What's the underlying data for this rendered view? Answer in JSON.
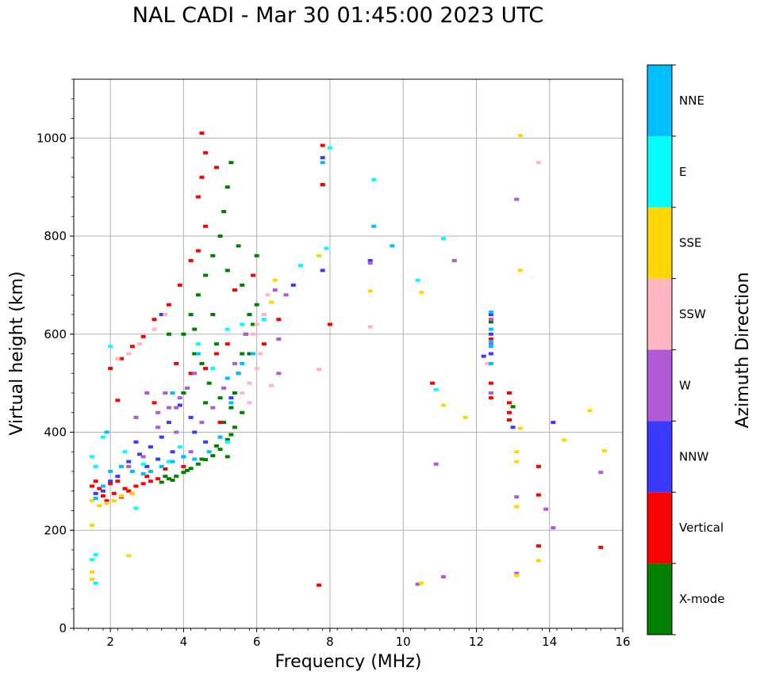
{
  "chart_data": {
    "type": "scatter",
    "title": "NAL CADI - Mar 30 01:45:00 2023 UTC",
    "xlabel": "Frequency (MHz)",
    "ylabel": "Virtual height (km)",
    "xlim": [
      1,
      16
    ],
    "ylim": [
      0,
      1120
    ],
    "xticks": [
      2,
      4,
      6,
      8,
      10,
      12,
      14,
      16
    ],
    "yticks": [
      0,
      200,
      400,
      600,
      800,
      1000
    ],
    "grid": true,
    "colorbar": {
      "label": "Azimuth Direction",
      "position": "right",
      "categories": [
        "X-mode",
        "Vertical",
        "NNW",
        "W",
        "SSW",
        "SSE",
        "E",
        "NNE"
      ],
      "colors": [
        "#008000",
        "#ff0000",
        "#3a3aff",
        "#b05ad6",
        "#ffb6c1",
        "#ffd700",
        "#00ffff",
        "#00bfff"
      ]
    },
    "series": [
      {
        "name": "X-mode",
        "points": [
          [
            3.4,
            298
          ],
          [
            3.6,
            305
          ],
          [
            3.8,
            310
          ],
          [
            4.0,
            318
          ],
          [
            4.2,
            326
          ],
          [
            4.4,
            335
          ],
          [
            4.6,
            344
          ],
          [
            4.8,
            352
          ],
          [
            5.0,
            365
          ],
          [
            5.2,
            385
          ],
          [
            5.4,
            410
          ],
          [
            5.1,
            420
          ],
          [
            5.3,
            450
          ],
          [
            5.4,
            480
          ],
          [
            5.5,
            520
          ],
          [
            5.6,
            560
          ],
          [
            5.7,
            600
          ],
          [
            5.8,
            640
          ],
          [
            6.0,
            660
          ],
          [
            4.2,
            640
          ],
          [
            4.4,
            680
          ],
          [
            4.6,
            720
          ],
          [
            4.8,
            760
          ],
          [
            5.0,
            800
          ],
          [
            5.1,
            850
          ],
          [
            5.2,
            900
          ],
          [
            5.3,
            950
          ],
          [
            4.0,
            600
          ],
          [
            4.5,
            540
          ],
          [
            4.7,
            500
          ],
          [
            5.0,
            470
          ],
          [
            3.6,
            600
          ],
          [
            4.3,
            610
          ],
          [
            5.9,
            620
          ],
          [
            5.6,
            700
          ],
          [
            6.0,
            760
          ],
          [
            5.2,
            730
          ],
          [
            4.9,
            580
          ],
          [
            3.5,
            310
          ],
          [
            4.5,
            345
          ],
          [
            4.9,
            372
          ],
          [
            5.3,
            395
          ],
          [
            4.3,
            560
          ],
          [
            4.8,
            640
          ],
          [
            5.5,
            780
          ],
          [
            7.8,
            905
          ],
          [
            12.4,
            625
          ],
          [
            13.0,
            452
          ],
          [
            3.7,
            302
          ],
          [
            4.1,
            322
          ],
          [
            5.2,
            350
          ],
          [
            5.6,
            440
          ],
          [
            5.8,
            560
          ],
          [
            4.6,
            460
          ],
          [
            4.0,
            480
          ]
        ]
      },
      {
        "name": "Vertical",
        "points": [
          [
            1.5,
            290
          ],
          [
            1.7,
            285
          ],
          [
            1.9,
            260
          ],
          [
            2.1,
            275
          ],
          [
            2.3,
            268
          ],
          [
            2.5,
            280
          ],
          [
            2.7,
            290
          ],
          [
            2.9,
            295
          ],
          [
            3.1,
            300
          ],
          [
            3.3,
            305
          ],
          [
            1.6,
            300
          ],
          [
            1.8,
            270
          ],
          [
            2.0,
            295
          ],
          [
            2.2,
            300
          ],
          [
            2.4,
            285
          ],
          [
            2.6,
            275
          ],
          [
            2.0,
            530
          ],
          [
            2.3,
            550
          ],
          [
            2.6,
            575
          ],
          [
            2.9,
            595
          ],
          [
            3.2,
            630
          ],
          [
            3.6,
            660
          ],
          [
            3.9,
            700
          ],
          [
            4.2,
            750
          ],
          [
            4.4,
            770
          ],
          [
            4.6,
            820
          ],
          [
            4.4,
            880
          ],
          [
            4.5,
            920
          ],
          [
            4.5,
            1010
          ],
          [
            4.6,
            970
          ],
          [
            4.9,
            940
          ],
          [
            4.2,
            520
          ],
          [
            4.6,
            530
          ],
          [
            4.9,
            560
          ],
          [
            5.2,
            580
          ],
          [
            3.8,
            540
          ],
          [
            3.2,
            460
          ],
          [
            2.2,
            465
          ],
          [
            5.0,
            420
          ],
          [
            5.4,
            690
          ],
          [
            5.9,
            720
          ],
          [
            6.2,
            580
          ],
          [
            6.6,
            630
          ],
          [
            7.8,
            985
          ],
          [
            7.8,
            905
          ],
          [
            8.0,
            620
          ],
          [
            7.7,
            88
          ],
          [
            10.8,
            500
          ],
          [
            12.4,
            630
          ],
          [
            12.4,
            590
          ],
          [
            12.4,
            560
          ],
          [
            12.4,
            500
          ],
          [
            12.4,
            470
          ],
          [
            12.9,
            480
          ],
          [
            12.9,
            460
          ],
          [
            12.9,
            440
          ],
          [
            12.9,
            425
          ],
          [
            13.7,
            330
          ],
          [
            13.7,
            272
          ],
          [
            13.7,
            168
          ],
          [
            15.4,
            165
          ],
          [
            3.0,
            310
          ],
          [
            3.5,
            325
          ],
          [
            4.0,
            330
          ]
        ]
      },
      {
        "name": "NNW",
        "points": [
          [
            1.6,
            275
          ],
          [
            1.8,
            280
          ],
          [
            2.0,
            300
          ],
          [
            2.2,
            310
          ],
          [
            2.5,
            340
          ],
          [
            2.8,
            355
          ],
          [
            3.1,
            370
          ],
          [
            3.4,
            390
          ],
          [
            3.7,
            360
          ],
          [
            4.0,
            350
          ],
          [
            4.3,
            400
          ],
          [
            4.6,
            380
          ],
          [
            3.0,
            330
          ],
          [
            3.3,
            345
          ],
          [
            3.6,
            420
          ],
          [
            3.9,
            455
          ],
          [
            4.2,
            430
          ],
          [
            2.7,
            380
          ],
          [
            5.0,
            390
          ],
          [
            5.3,
            470
          ],
          [
            3.4,
            640
          ],
          [
            7.0,
            700
          ],
          [
            7.8,
            730
          ],
          [
            7.8,
            960
          ],
          [
            9.1,
            750
          ],
          [
            12.4,
            640
          ],
          [
            12.4,
            600
          ],
          [
            12.4,
            560
          ],
          [
            12.2,
            555
          ],
          [
            13.0,
            410
          ],
          [
            14.1,
            420
          ]
        ]
      },
      {
        "name": "W",
        "points": [
          [
            2.5,
            330
          ],
          [
            2.9,
            350
          ],
          [
            3.3,
            410
          ],
          [
            3.6,
            450
          ],
          [
            3.9,
            470
          ],
          [
            4.1,
            490
          ],
          [
            3.5,
            480
          ],
          [
            3.0,
            480
          ],
          [
            2.7,
            430
          ],
          [
            3.3,
            440
          ],
          [
            3.8,
            400
          ],
          [
            4.2,
            360
          ],
          [
            4.5,
            420
          ],
          [
            4.8,
            450
          ],
          [
            5.1,
            490
          ],
          [
            5.4,
            540
          ],
          [
            5.7,
            600
          ],
          [
            6.2,
            640
          ],
          [
            6.5,
            690
          ],
          [
            6.8,
            680
          ],
          [
            6.6,
            590
          ],
          [
            6.6,
            520
          ],
          [
            9.1,
            745
          ],
          [
            10.9,
            335
          ],
          [
            11.1,
            105
          ],
          [
            11.4,
            750
          ],
          [
            12.4,
            480
          ],
          [
            12.4,
            630
          ],
          [
            12.4,
            580
          ],
          [
            13.1,
            875
          ],
          [
            13.1,
            268
          ],
          [
            13.1,
            112
          ],
          [
            13.9,
            243
          ],
          [
            14.1,
            205
          ],
          [
            15.4,
            318
          ],
          [
            4.3,
            520
          ],
          [
            3.8,
            450
          ],
          [
            10.4,
            90
          ]
        ]
      },
      {
        "name": "SSW",
        "points": [
          [
            2.2,
            550
          ],
          [
            2.5,
            560
          ],
          [
            2.8,
            580
          ],
          [
            3.2,
            610
          ],
          [
            3.5,
            640
          ],
          [
            5.6,
            480
          ],
          [
            5.8,
            500
          ],
          [
            6.0,
            530
          ],
          [
            6.1,
            560
          ],
          [
            5.9,
            600
          ],
          [
            6.0,
            620
          ],
          [
            6.2,
            640
          ],
          [
            5.8,
            460
          ],
          [
            6.3,
            680
          ],
          [
            7.7,
            528
          ],
          [
            9.1,
            615
          ],
          [
            13.7,
            950
          ],
          [
            12.3,
            540
          ],
          [
            6.4,
            495
          ]
        ]
      },
      {
        "name": "SSE",
        "points": [
          [
            1.5,
            260
          ],
          [
            1.7,
            250
          ],
          [
            1.9,
            255
          ],
          [
            2.1,
            260
          ],
          [
            2.3,
            270
          ],
          [
            1.5,
            210
          ],
          [
            1.5,
            115
          ],
          [
            1.5,
            100
          ],
          [
            2.5,
            148
          ],
          [
            6.5,
            710
          ],
          [
            6.4,
            665
          ],
          [
            7.7,
            760
          ],
          [
            9.1,
            688
          ],
          [
            10.5,
            685
          ],
          [
            10.5,
            92
          ],
          [
            11.1,
            455
          ],
          [
            11.7,
            430
          ],
          [
            13.2,
            1005
          ],
          [
            13.2,
            730
          ],
          [
            13.2,
            408
          ],
          [
            13.1,
            360
          ],
          [
            13.1,
            340
          ],
          [
            13.1,
            248
          ],
          [
            13.1,
            108
          ],
          [
            13.7,
            138
          ],
          [
            14.4,
            384
          ],
          [
            15.1,
            444
          ],
          [
            15.5,
            362
          ],
          [
            2.6,
            275
          ]
        ]
      },
      {
        "name": "E",
        "points": [
          [
            1.5,
            350
          ],
          [
            1.6,
            330
          ],
          [
            1.8,
            390
          ],
          [
            1.5,
            140
          ],
          [
            1.6,
            150
          ],
          [
            1.6,
            92
          ],
          [
            2.0,
            575
          ],
          [
            2.4,
            360
          ],
          [
            2.9,
            335
          ],
          [
            3.6,
            340
          ],
          [
            3.9,
            370
          ],
          [
            4.4,
            580
          ],
          [
            4.8,
            530
          ],
          [
            5.2,
            610
          ],
          [
            5.6,
            620
          ],
          [
            6.2,
            630
          ],
          [
            7.2,
            740
          ],
          [
            8.0,
            980
          ],
          [
            9.2,
            915
          ],
          [
            10.4,
            710
          ],
          [
            10.9,
            487
          ],
          [
            11.1,
            795
          ],
          [
            5.2,
            380
          ],
          [
            2.7,
            245
          ],
          [
            7.9,
            775
          ]
        ]
      },
      {
        "name": "NNE",
        "points": [
          [
            1.6,
            265
          ],
          [
            1.8,
            290
          ],
          [
            2.0,
            320
          ],
          [
            2.3,
            330
          ],
          [
            2.6,
            320
          ],
          [
            2.9,
            315
          ],
          [
            3.1,
            320
          ],
          [
            3.4,
            330
          ],
          [
            3.7,
            340
          ],
          [
            4.0,
            350
          ],
          [
            4.3,
            345
          ],
          [
            4.7,
            360
          ],
          [
            5.0,
            390
          ],
          [
            5.3,
            460
          ],
          [
            5.5,
            520
          ],
          [
            5.6,
            540
          ],
          [
            5.9,
            560
          ],
          [
            3.7,
            480
          ],
          [
            4.4,
            560
          ],
          [
            5.2,
            510
          ],
          [
            9.2,
            820
          ],
          [
            9.7,
            780
          ],
          [
            12.4,
            645
          ],
          [
            12.4,
            610
          ],
          [
            12.4,
            585
          ],
          [
            12.4,
            575
          ],
          [
            12.4,
            540
          ],
          [
            1.9,
            400
          ],
          [
            7.8,
            950
          ]
        ]
      }
    ]
  }
}
